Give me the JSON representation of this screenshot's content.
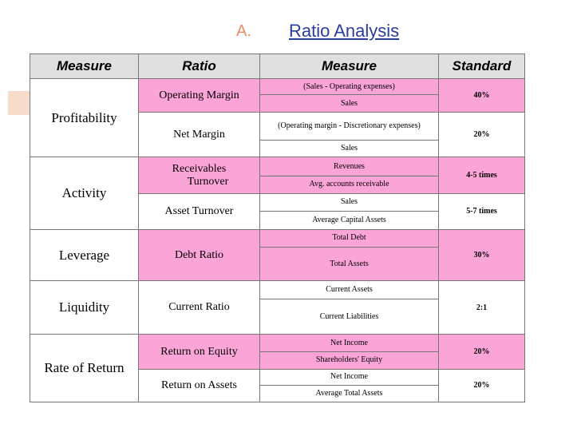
{
  "title": {
    "letter": "A.",
    "text": "Ratio Analysis"
  },
  "headers": {
    "measure": "Measure",
    "ratio": "Ratio",
    "formula": "Measure",
    "standard": "Standard"
  },
  "categories": {
    "profitability": "Profitability",
    "activity": "Activity",
    "leverage": "Leverage",
    "liquidity": "Liquidity",
    "rate_of_return": "Rate of Return"
  },
  "ratios": {
    "operating_margin": {
      "name": "Operating Margin",
      "numerator": "(Sales - Operating expenses)",
      "denominator": "Sales",
      "standard": "40%"
    },
    "net_margin": {
      "name": "Net Margin",
      "numerator": "(Operating margin - Discretionary expenses)",
      "denominator": "Sales",
      "standard": "20%"
    },
    "receivables_turnover": {
      "name_line1": "Receivables",
      "name_line2": "Turnover",
      "numerator": "Revenues",
      "denominator": "Avg. accounts receivable",
      "standard": "4-5 times"
    },
    "asset_turnover": {
      "name": "Asset Turnover",
      "numerator": "Sales",
      "denominator": "Average Capital Assets",
      "standard": "5-7 times"
    },
    "debt_ratio": {
      "name": "Debt Ratio",
      "numerator": "Total Debt",
      "denominator": "Total Assets",
      "standard": "30%"
    },
    "current_ratio": {
      "name": "Current Ratio",
      "numerator": "Current Assets",
      "denominator": "Current Liabilities",
      "standard": "2:1"
    },
    "return_on_equity": {
      "name": "Return on Equity",
      "numerator": "Net Income",
      "denominator": "Shareholders' Equity",
      "standard": "20%"
    },
    "return_on_assets": {
      "name": "Return on Assets",
      "numerator": "Net Income",
      "denominator": "Average Total Assets",
      "standard": "20%"
    }
  }
}
